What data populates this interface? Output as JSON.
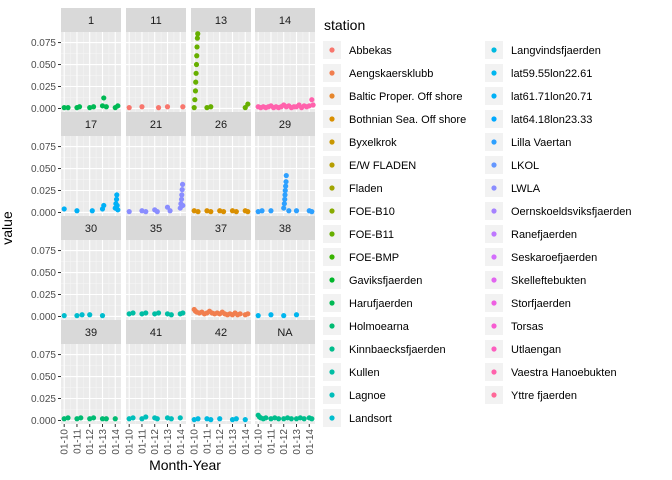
{
  "chart_data": {
    "type": "scatter",
    "facet_by": "panel",
    "xlabel": "Month-Year",
    "ylabel": "value",
    "x_ticks": [
      "01-10",
      "01-11",
      "01-12",
      "01-13",
      "01-14"
    ],
    "y_ticks": [
      "0.000",
      "0.025",
      "0.050",
      "0.075"
    ],
    "ylim": [
      0,
      0.087
    ],
    "grid": true,
    "legend": {
      "title": "station",
      "placement": "right",
      "columns": 2,
      "entries": [
        {
          "name": "Abbekas",
          "color": "#F8766D"
        },
        {
          "name": "Aengskaersklubb",
          "color": "#F17E4E"
        },
        {
          "name": "Baltic Proper. Off shore",
          "color": "#E6862C"
        },
        {
          "name": "Bothnian Sea. Off shore",
          "color": "#D98F00"
        },
        {
          "name": "Byxelkrok",
          "color": "#C99700"
        },
        {
          "name": "E/W FLADEN",
          "color": "#B69E00"
        },
        {
          "name": "Fladen",
          "color": "#A0A400"
        },
        {
          "name": "FOE-B10",
          "color": "#87AA00"
        },
        {
          "name": "FOE-B11",
          "color": "#67AF00"
        },
        {
          "name": "FOE-BMP",
          "color": "#38B300"
        },
        {
          "name": "Gaviksfjaerden",
          "color": "#00B62A"
        },
        {
          "name": "Harufjaerden",
          "color": "#00B954"
        },
        {
          "name": "Holmoearna",
          "color": "#00BB72"
        },
        {
          "name": "Kinnbaecksfjaerden",
          "color": "#00BD8C"
        },
        {
          "name": "Kullen",
          "color": "#00BEA4"
        },
        {
          "name": "Lagnoe",
          "color": "#00BEBA"
        },
        {
          "name": "Landsort",
          "color": "#00BDCE"
        },
        {
          "name": "Langvindsfjaerden",
          "color": "#00BAE0"
        },
        {
          "name": "lat59.55lon22.61",
          "color": "#00B6EF"
        },
        {
          "name": "lat61.71lon20.71",
          "color": "#00B0F6"
        },
        {
          "name": "lat64.18lon23.33",
          "color": "#00A9FF"
        },
        {
          "name": "Lilla Vaertan",
          "color": "#2DA0FF"
        },
        {
          "name": "LKOL",
          "color": "#6497FF"
        },
        {
          "name": "LWLA",
          "color": "#8A8DFF"
        },
        {
          "name": "Oernskoeldsviksfjaerden",
          "color": "#A682FF"
        },
        {
          "name": "Ranefjaerden",
          "color": "#BE77FF"
        },
        {
          "name": "Seskaroefjaerden",
          "color": "#D36DFC"
        },
        {
          "name": "Skelleftebukten",
          "color": "#E265F0"
        },
        {
          "name": "Storfjaerden",
          "color": "#EE5FE2"
        },
        {
          "name": "Torsas",
          "color": "#F75CD1"
        },
        {
          "name": "Utlaengan",
          "color": "#FD5EBF"
        },
        {
          "name": "Vaestra Hanoebukten",
          "color": "#FF62AC"
        },
        {
          "name": "Yttre fjaerden",
          "color": "#FF6898"
        }
      ]
    },
    "panels": [
      {
        "label": "1",
        "color": "#00B954",
        "points": [
          {
            "x": 2010.0,
            "y": 0.001
          },
          {
            "x": 2010.3,
            "y": 0.001
          },
          {
            "x": 2011.0,
            "y": 0.001
          },
          {
            "x": 2011.2,
            "y": 0.002
          },
          {
            "x": 2012.0,
            "y": 0.001
          },
          {
            "x": 2012.3,
            "y": 0.002
          },
          {
            "x": 2013.0,
            "y": 0.003
          },
          {
            "x": 2013.1,
            "y": 0.012
          },
          {
            "x": 2013.3,
            "y": 0.002
          },
          {
            "x": 2014.0,
            "y": 0.001
          },
          {
            "x": 2014.2,
            "y": 0.003
          }
        ]
      },
      {
        "label": "11",
        "color": "#F8766D",
        "points": [
          {
            "x": 2010.0,
            "y": 0.001
          },
          {
            "x": 2011.0,
            "y": 0.002
          },
          {
            "x": 2012.3,
            "y": 0.001
          },
          {
            "x": 2013.0,
            "y": 0.002
          },
          {
            "x": 2014.2,
            "y": 0.002
          }
        ]
      },
      {
        "label": "13",
        "color": "#67AF00",
        "points": [
          {
            "x": 2010.0,
            "y": 0.001
          },
          {
            "x": 2010.05,
            "y": 0.01
          },
          {
            "x": 2010.1,
            "y": 0.02
          },
          {
            "x": 2010.12,
            "y": 0.03
          },
          {
            "x": 2010.15,
            "y": 0.04
          },
          {
            "x": 2010.18,
            "y": 0.05
          },
          {
            "x": 2010.2,
            "y": 0.06
          },
          {
            "x": 2010.22,
            "y": 0.07
          },
          {
            "x": 2010.25,
            "y": 0.08
          },
          {
            "x": 2010.28,
            "y": 0.085
          },
          {
            "x": 2011.0,
            "y": 0.001
          },
          {
            "x": 2011.3,
            "y": 0.002
          },
          {
            "x": 2014.0,
            "y": 0.001
          },
          {
            "x": 2014.2,
            "y": 0.005
          }
        ]
      },
      {
        "label": "14",
        "color": "#FF62AC",
        "points": [
          {
            "x": 2010.0,
            "y": 0.002
          },
          {
            "x": 2010.2,
            "y": 0.001
          },
          {
            "x": 2010.4,
            "y": 0.002
          },
          {
            "x": 2010.6,
            "y": 0.001
          },
          {
            "x": 2010.8,
            "y": 0.002
          },
          {
            "x": 2011.0,
            "y": 0.003
          },
          {
            "x": 2011.2,
            "y": 0.001
          },
          {
            "x": 2011.4,
            "y": 0.002
          },
          {
            "x": 2011.6,
            "y": 0.001
          },
          {
            "x": 2011.8,
            "y": 0.002
          },
          {
            "x": 2012.0,
            "y": 0.004
          },
          {
            "x": 2012.2,
            "y": 0.002
          },
          {
            "x": 2012.4,
            "y": 0.003
          },
          {
            "x": 2012.6,
            "y": 0.001
          },
          {
            "x": 2012.8,
            "y": 0.002
          },
          {
            "x": 2013.0,
            "y": 0.002
          },
          {
            "x": 2013.2,
            "y": 0.004
          },
          {
            "x": 2013.4,
            "y": 0.001
          },
          {
            "x": 2013.6,
            "y": 0.003
          },
          {
            "x": 2013.8,
            "y": 0.002
          },
          {
            "x": 2014.0,
            "y": 0.003
          },
          {
            "x": 2014.2,
            "y": 0.01
          },
          {
            "x": 2014.3,
            "y": 0.004
          }
        ]
      },
      {
        "label": "17",
        "color": "#00B0F6",
        "points": [
          {
            "x": 2010.0,
            "y": 0.004
          },
          {
            "x": 2011.0,
            "y": 0.002
          },
          {
            "x": 2012.2,
            "y": 0.002
          },
          {
            "x": 2013.0,
            "y": 0.004
          },
          {
            "x": 2013.1,
            "y": 0.008
          },
          {
            "x": 2014.0,
            "y": 0.005
          },
          {
            "x": 2014.05,
            "y": 0.01
          },
          {
            "x": 2014.1,
            "y": 0.015
          },
          {
            "x": 2014.12,
            "y": 0.02
          },
          {
            "x": 2014.15,
            "y": 0.008
          },
          {
            "x": 2014.2,
            "y": 0.003
          }
        ]
      },
      {
        "label": "21",
        "color": "#8A8DFF",
        "points": [
          {
            "x": 2010.0,
            "y": 0.001
          },
          {
            "x": 2011.0,
            "y": 0.002
          },
          {
            "x": 2011.3,
            "y": 0.001
          },
          {
            "x": 2012.0,
            "y": 0.003
          },
          {
            "x": 2012.2,
            "y": 0.001
          },
          {
            "x": 2013.0,
            "y": 0.006
          },
          {
            "x": 2013.2,
            "y": 0.002
          },
          {
            "x": 2014.0,
            "y": 0.005
          },
          {
            "x": 2014.05,
            "y": 0.01
          },
          {
            "x": 2014.1,
            "y": 0.015
          },
          {
            "x": 2014.12,
            "y": 0.02
          },
          {
            "x": 2014.15,
            "y": 0.026
          },
          {
            "x": 2014.18,
            "y": 0.032
          },
          {
            "x": 2014.2,
            "y": 0.008
          }
        ]
      },
      {
        "label": "26",
        "color": "#D98F00",
        "points": [
          {
            "x": 2010.0,
            "y": 0.002
          },
          {
            "x": 2010.3,
            "y": 0.001
          },
          {
            "x": 2011.0,
            "y": 0.002
          },
          {
            "x": 2011.3,
            "y": 0.001
          },
          {
            "x": 2012.0,
            "y": 0.002
          },
          {
            "x": 2012.3,
            "y": 0.001
          },
          {
            "x": 2013.0,
            "y": 0.002
          },
          {
            "x": 2013.3,
            "y": 0.001
          },
          {
            "x": 2014.0,
            "y": 0.002
          },
          {
            "x": 2014.2,
            "y": 0.001
          }
        ]
      },
      {
        "label": "29",
        "color": "#2DA0FF",
        "points": [
          {
            "x": 2010.0,
            "y": 0.001
          },
          {
            "x": 2010.3,
            "y": 0.002
          },
          {
            "x": 2011.0,
            "y": 0.002
          },
          {
            "x": 2012.0,
            "y": 0.005
          },
          {
            "x": 2012.05,
            "y": 0.01
          },
          {
            "x": 2012.08,
            "y": 0.015
          },
          {
            "x": 2012.1,
            "y": 0.02
          },
          {
            "x": 2012.12,
            "y": 0.025
          },
          {
            "x": 2012.15,
            "y": 0.03
          },
          {
            "x": 2012.18,
            "y": 0.035
          },
          {
            "x": 2012.2,
            "y": 0.042
          },
          {
            "x": 2012.4,
            "y": 0.002
          },
          {
            "x": 2013.0,
            "y": 0.002
          },
          {
            "x": 2014.0,
            "y": 0.002
          },
          {
            "x": 2014.2,
            "y": 0.001
          }
        ]
      },
      {
        "label": "30",
        "color": "#00BDCE",
        "points": [
          {
            "x": 2010.0,
            "y": 0.001
          },
          {
            "x": 2011.0,
            "y": 0.001
          },
          {
            "x": 2011.4,
            "y": 0.002
          },
          {
            "x": 2012.0,
            "y": 0.002
          },
          {
            "x": 2013.0,
            "y": 0.001
          }
        ]
      },
      {
        "label": "35",
        "color": "#00BEA4",
        "points": [
          {
            "x": 2010.0,
            "y": 0.003
          },
          {
            "x": 2010.3,
            "y": 0.004
          },
          {
            "x": 2011.0,
            "y": 0.003
          },
          {
            "x": 2011.3,
            "y": 0.004
          },
          {
            "x": 2012.0,
            "y": 0.003
          },
          {
            "x": 2012.3,
            "y": 0.004
          },
          {
            "x": 2013.0,
            "y": 0.003
          },
          {
            "x": 2013.3,
            "y": 0.002
          },
          {
            "x": 2014.0,
            "y": 0.003
          },
          {
            "x": 2014.2,
            "y": 0.004
          }
        ]
      },
      {
        "label": "37",
        "color": "#F17E4E",
        "points": [
          {
            "x": 2010.0,
            "y": 0.008
          },
          {
            "x": 2010.1,
            "y": 0.006
          },
          {
            "x": 2010.2,
            "y": 0.005
          },
          {
            "x": 2010.4,
            "y": 0.004
          },
          {
            "x": 2010.6,
            "y": 0.005
          },
          {
            "x": 2010.8,
            "y": 0.003
          },
          {
            "x": 2011.0,
            "y": 0.004
          },
          {
            "x": 2011.2,
            "y": 0.006
          },
          {
            "x": 2011.4,
            "y": 0.004
          },
          {
            "x": 2011.6,
            "y": 0.003
          },
          {
            "x": 2011.8,
            "y": 0.004
          },
          {
            "x": 2012.0,
            "y": 0.003
          },
          {
            "x": 2012.2,
            "y": 0.005
          },
          {
            "x": 2012.4,
            "y": 0.003
          },
          {
            "x": 2012.6,
            "y": 0.002
          },
          {
            "x": 2012.8,
            "y": 0.003
          },
          {
            "x": 2013.0,
            "y": 0.002
          },
          {
            "x": 2013.2,
            "y": 0.004
          },
          {
            "x": 2013.4,
            "y": 0.002
          },
          {
            "x": 2013.6,
            "y": 0.003
          },
          {
            "x": 2014.0,
            "y": 0.002
          },
          {
            "x": 2014.2,
            "y": 0.003
          }
        ]
      },
      {
        "label": "38",
        "color": "#00B6EF",
        "points": [
          {
            "x": 2010.0,
            "y": 0.001
          },
          {
            "x": 2011.0,
            "y": 0.002
          },
          {
            "x": 2012.0,
            "y": 0.001
          },
          {
            "x": 2013.0,
            "y": 0.002
          }
        ]
      },
      {
        "label": "39",
        "color": "#00BB72",
        "points": [
          {
            "x": 2010.0,
            "y": 0.002
          },
          {
            "x": 2010.3,
            "y": 0.003
          },
          {
            "x": 2011.0,
            "y": 0.002
          },
          {
            "x": 2011.3,
            "y": 0.003
          },
          {
            "x": 2012.0,
            "y": 0.002
          },
          {
            "x": 2012.3,
            "y": 0.003
          },
          {
            "x": 2013.0,
            "y": 0.002
          },
          {
            "x": 2013.3,
            "y": 0.002
          },
          {
            "x": 2014.0,
            "y": 0.002
          }
        ]
      },
      {
        "label": "41",
        "color": "#00BEBA",
        "points": [
          {
            "x": 2010.0,
            "y": 0.002
          },
          {
            "x": 2010.3,
            "y": 0.003
          },
          {
            "x": 2011.0,
            "y": 0.002
          },
          {
            "x": 2011.3,
            "y": 0.004
          },
          {
            "x": 2012.0,
            "y": 0.003
          },
          {
            "x": 2012.2,
            "y": 0.002
          },
          {
            "x": 2013.0,
            "y": 0.003
          },
          {
            "x": 2013.3,
            "y": 0.002
          },
          {
            "x": 2014.0,
            "y": 0.003
          }
        ]
      },
      {
        "label": "42",
        "color": "#00BAE0",
        "points": [
          {
            "x": 2010.0,
            "y": 0.001
          },
          {
            "x": 2010.3,
            "y": 0.002
          },
          {
            "x": 2011.0,
            "y": 0.002
          },
          {
            "x": 2011.3,
            "y": 0.001
          },
          {
            "x": 2012.0,
            "y": 0.002
          },
          {
            "x": 2013.0,
            "y": 0.001
          },
          {
            "x": 2013.3,
            "y": 0.002
          },
          {
            "x": 2014.0,
            "y": 0.001
          }
        ]
      },
      {
        "label": "NA",
        "color": "#00BD8C",
        "points": [
          {
            "x": 2010.0,
            "y": 0.006
          },
          {
            "x": 2010.1,
            "y": 0.004
          },
          {
            "x": 2010.2,
            "y": 0.003
          },
          {
            "x": 2010.4,
            "y": 0.002
          },
          {
            "x": 2010.6,
            "y": 0.003
          },
          {
            "x": 2011.0,
            "y": 0.002
          },
          {
            "x": 2011.3,
            "y": 0.003
          },
          {
            "x": 2011.6,
            "y": 0.002
          },
          {
            "x": 2012.0,
            "y": 0.002
          },
          {
            "x": 2012.3,
            "y": 0.003
          },
          {
            "x": 2012.6,
            "y": 0.002
          },
          {
            "x": 2013.0,
            "y": 0.002
          },
          {
            "x": 2013.3,
            "y": 0.003
          },
          {
            "x": 2013.6,
            "y": 0.002
          },
          {
            "x": 2014.0,
            "y": 0.003
          },
          {
            "x": 2014.2,
            "y": 0.002
          }
        ]
      }
    ]
  }
}
